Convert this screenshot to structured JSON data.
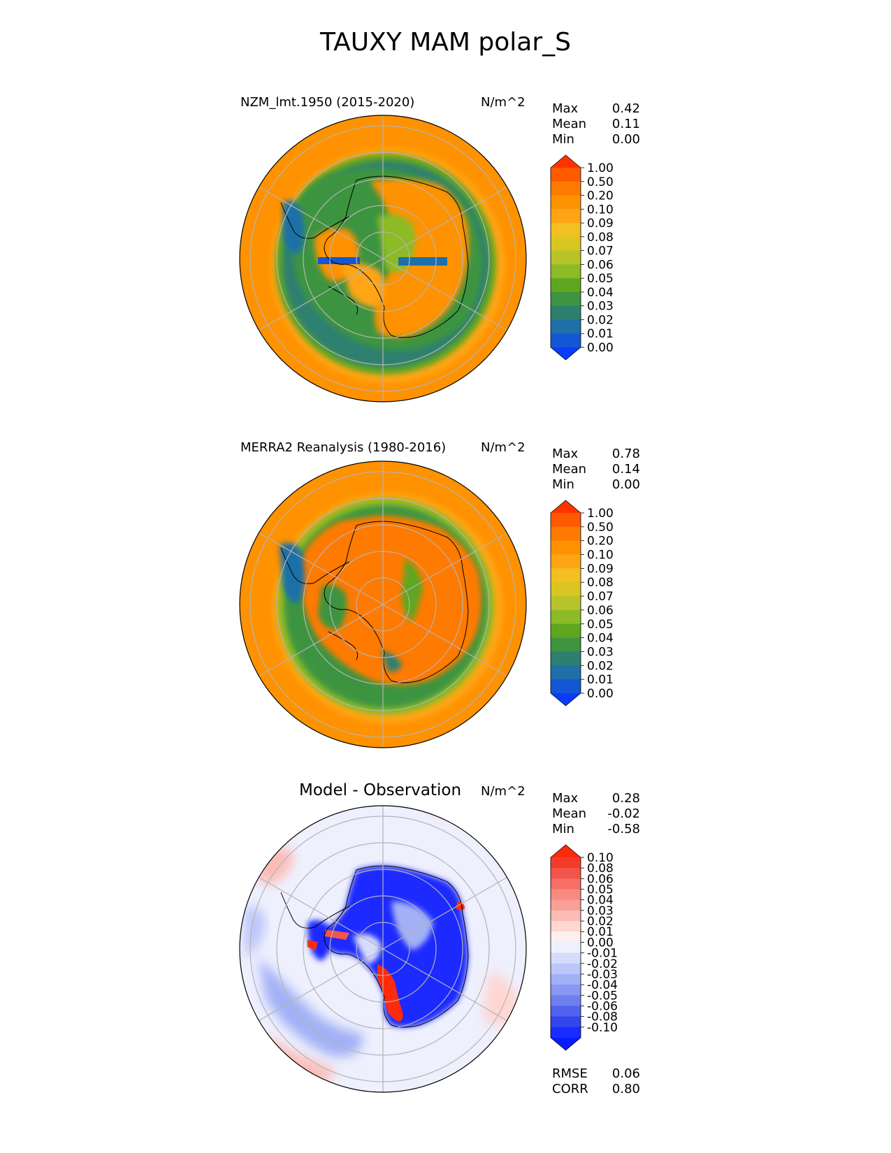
{
  "title": "TAUXY MAM polar_S",
  "panels": [
    {
      "id": "test",
      "title": "NZM_lmt.1950 (2015-2020)",
      "units": "N/m^2",
      "stats": {
        "Max": "0.42",
        "Mean": "0.11",
        "Min": "0.00"
      },
      "colorbar": {
        "levels": [
          "1.00",
          "0.50",
          "0.20",
          "0.10",
          "0.09",
          "0.08",
          "0.07",
          "0.06",
          "0.05",
          "0.04",
          "0.03",
          "0.02",
          "0.01",
          "0.00"
        ],
        "colors": [
          "#ff3300",
          "#ff5a00",
          "#ff7a00",
          "#ff9200",
          "#ffa515",
          "#f2c021",
          "#d9c623",
          "#b8c32a",
          "#8cbb25",
          "#5ea620",
          "#3e9440",
          "#2d8070",
          "#1f6fa8",
          "#1357d6",
          "#0a3cff"
        ]
      }
    },
    {
      "id": "ref",
      "title": "MERRA2 Reanalysis (1980-2016)",
      "units": "N/m^2",
      "stats": {
        "Max": "0.78",
        "Mean": "0.14",
        "Min": "0.00"
      },
      "colorbar": {
        "levels": [
          "1.00",
          "0.50",
          "0.20",
          "0.10",
          "0.09",
          "0.08",
          "0.07",
          "0.06",
          "0.05",
          "0.04",
          "0.03",
          "0.02",
          "0.01",
          "0.00"
        ],
        "colors": [
          "#ff3300",
          "#ff5a00",
          "#ff7a00",
          "#ff9200",
          "#ffa515",
          "#f2c021",
          "#d9c623",
          "#b8c32a",
          "#8cbb25",
          "#5ea620",
          "#3e9440",
          "#2d8070",
          "#1f6fa8",
          "#1357d6",
          "#0a3cff"
        ]
      }
    },
    {
      "id": "diff",
      "title": "Model - Observation",
      "units": "N/m^2",
      "stats": {
        "Max": "0.28",
        "Mean": "-0.02",
        "Min": "-0.58"
      },
      "metrics": {
        "RMSE": "0.06",
        "CORR": "0.80"
      },
      "colorbar": {
        "levels": [
          "0.10",
          "0.08",
          "0.06",
          "0.05",
          "0.04",
          "0.03",
          "0.02",
          "0.01",
          "0.00",
          "-0.01",
          "-0.02",
          "-0.03",
          "-0.04",
          "-0.05",
          "-0.06",
          "-0.08",
          "-0.10"
        ],
        "colors": [
          "#ff2a0a",
          "#f23c2a",
          "#f4554a",
          "#f66e66",
          "#f88a82",
          "#fa9f98",
          "#fcbcb6",
          "#fed6d2",
          "#fdf0ee",
          "#eef0fe",
          "#d6dcfb",
          "#bcc6f8",
          "#a2b0f6",
          "#8898f3",
          "#6e80f0",
          "#5062ee",
          "#3246ec",
          "#1a2cff",
          "#0a1cff"
        ]
      }
    }
  ],
  "chart_data": [
    {
      "type": "heatmap",
      "title": "NZM_lmt.1950 (2015-2020)",
      "projection": "south polar stereographic",
      "units": "N/m^2",
      "stats": {
        "max": 0.42,
        "mean": 0.11,
        "min": 0.0
      },
      "colorbar_levels": [
        0.0,
        0.01,
        0.02,
        0.03,
        0.04,
        0.05,
        0.06,
        0.07,
        0.08,
        0.09,
        0.1,
        0.2,
        0.5,
        1.0
      ]
    },
    {
      "type": "heatmap",
      "title": "MERRA2 Reanalysis (1980-2016)",
      "projection": "south polar stereographic",
      "units": "N/m^2",
      "stats": {
        "max": 0.78,
        "mean": 0.14,
        "min": 0.0
      },
      "colorbar_levels": [
        0.0,
        0.01,
        0.02,
        0.03,
        0.04,
        0.05,
        0.06,
        0.07,
        0.08,
        0.09,
        0.1,
        0.2,
        0.5,
        1.0
      ]
    },
    {
      "type": "heatmap",
      "title": "Model - Observation",
      "projection": "south polar stereographic",
      "units": "N/m^2",
      "stats": {
        "max": 0.28,
        "mean": -0.02,
        "min": -0.58
      },
      "metrics": {
        "rmse": 0.06,
        "corr": 0.8
      },
      "colorbar_levels": [
        -0.1,
        -0.08,
        -0.06,
        -0.05,
        -0.04,
        -0.03,
        -0.02,
        -0.01,
        0.0,
        0.01,
        0.02,
        0.03,
        0.04,
        0.05,
        0.06,
        0.08,
        0.1
      ]
    }
  ]
}
